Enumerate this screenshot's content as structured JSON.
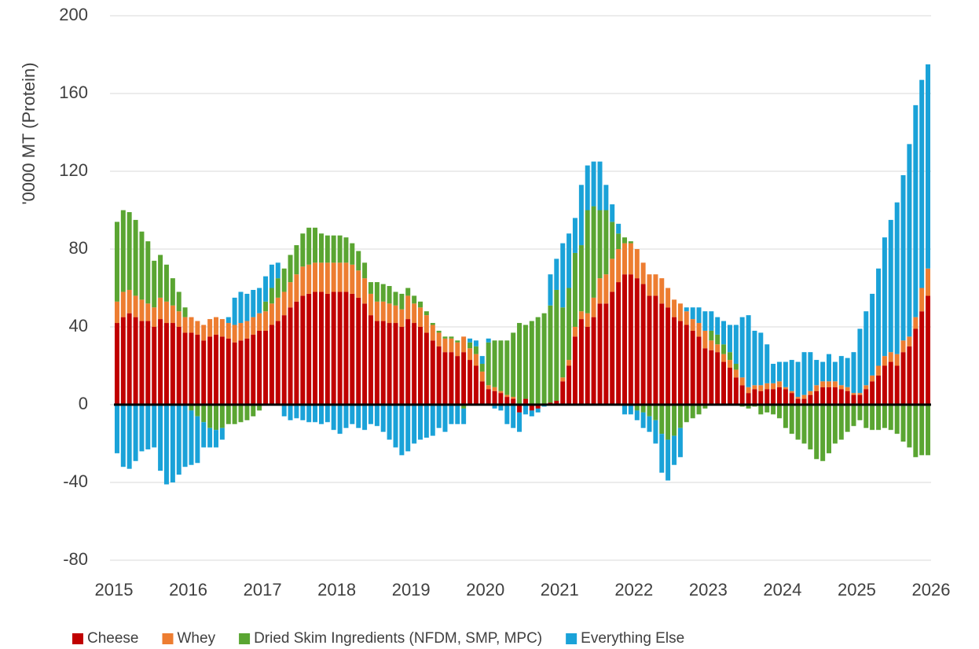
{
  "chart_data": {
    "type": "bar",
    "stacked": true,
    "y_label": "'0000 MT (Protein)",
    "xlim": [
      2015,
      2026
    ],
    "xticks": [
      2015,
      2016,
      2017,
      2018,
      2019,
      2020,
      2021,
      2022,
      2023,
      2024,
      2025,
      2026
    ],
    "ylim": [
      -80,
      200
    ],
    "yticks": [
      -80,
      -40,
      0,
      40,
      80,
      120,
      160,
      200
    ],
    "grid": true,
    "legend": "bottom",
    "x": [
      2015.042,
      2015.125,
      2015.208,
      2015.292,
      2015.375,
      2015.458,
      2015.542,
      2015.625,
      2015.708,
      2015.792,
      2015.875,
      2015.958,
      2016.042,
      2016.125,
      2016.208,
      2016.292,
      2016.375,
      2016.458,
      2016.542,
      2016.625,
      2016.708,
      2016.792,
      2016.875,
      2016.958,
      2017.042,
      2017.125,
      2017.208,
      2017.292,
      2017.375,
      2017.458,
      2017.542,
      2017.625,
      2017.708,
      2017.792,
      2017.875,
      2017.958,
      2018.042,
      2018.125,
      2018.208,
      2018.292,
      2018.375,
      2018.458,
      2018.542,
      2018.625,
      2018.708,
      2018.792,
      2018.875,
      2018.958,
      2019.042,
      2019.125,
      2019.208,
      2019.292,
      2019.375,
      2019.458,
      2019.542,
      2019.625,
      2019.708,
      2019.792,
      2019.875,
      2019.958,
      2020.042,
      2020.125,
      2020.208,
      2020.292,
      2020.375,
      2020.458,
      2020.542,
      2020.625,
      2020.708,
      2020.792,
      2020.875,
      2020.958,
      2021.042,
      2021.125,
      2021.208,
      2021.292,
      2021.375,
      2021.458,
      2021.542,
      2021.625,
      2021.708,
      2021.792,
      2021.875,
      2021.958,
      2022.042,
      2022.125,
      2022.208,
      2022.292,
      2022.375,
      2022.458,
      2022.542,
      2022.625,
      2022.708,
      2022.792,
      2022.875,
      2022.958,
      2023.042,
      2023.125,
      2023.208,
      2023.292,
      2023.375,
      2023.458,
      2023.542,
      2023.625,
      2023.708,
      2023.792,
      2023.875,
      2023.958,
      2024.042,
      2024.125,
      2024.208,
      2024.292,
      2024.375,
      2024.458,
      2024.542,
      2024.625,
      2024.708,
      2024.792,
      2024.875,
      2024.958,
      2025.042,
      2025.125,
      2025.208,
      2025.292,
      2025.375,
      2025.458,
      2025.542,
      2025.625,
      2025.708,
      2025.792,
      2025.875,
      2025.958
    ],
    "series": [
      {
        "name": "Cheese",
        "color": "#c00000",
        "values": [
          42,
          45,
          47,
          45,
          43,
          43,
          40,
          44,
          42,
          42,
          40,
          37,
          37,
          36,
          33,
          35,
          36,
          35,
          34,
          32,
          33,
          34,
          36,
          38,
          38,
          41,
          43,
          46,
          50,
          53,
          56,
          57,
          58,
          58,
          57,
          58,
          58,
          58,
          57,
          55,
          52,
          46,
          43,
          43,
          42,
          42,
          40,
          44,
          42,
          40,
          37,
          33,
          30,
          27,
          27,
          25,
          27,
          23,
          20,
          12,
          8,
          7,
          6,
          4,
          3,
          -4,
          3,
          -3,
          -2,
          0,
          1,
          2,
          12,
          20,
          35,
          44,
          40,
          45,
          52,
          52,
          58,
          63,
          67,
          67,
          65,
          62,
          56,
          56,
          52,
          50,
          45,
          43,
          41,
          38,
          35,
          29,
          28,
          27,
          22,
          19,
          14,
          10,
          6,
          8,
          7,
          8,
          8,
          9,
          8,
          6,
          3,
          3,
          5,
          7,
          9,
          9,
          9,
          8,
          7,
          5,
          5,
          8,
          12,
          15,
          20,
          22,
          20,
          27,
          30,
          39,
          48,
          56
        ]
      },
      {
        "name": "Whey",
        "color": "#ed7d31",
        "values": [
          11,
          13,
          12,
          11,
          11,
          9,
          10,
          11,
          11,
          9,
          8,
          8,
          8,
          7,
          8,
          9,
          9,
          9,
          8,
          9,
          9,
          9,
          9,
          9,
          10,
          11,
          12,
          12,
          13,
          14,
          15,
          15,
          15,
          15,
          16,
          15,
          15,
          15,
          15,
          14,
          13,
          11,
          10,
          10,
          10,
          9,
          9,
          12,
          10,
          10,
          9,
          8,
          7,
          7,
          7,
          7,
          8,
          6,
          6,
          5,
          2,
          2,
          1,
          1,
          1,
          0,
          0,
          0,
          0,
          0,
          0,
          0,
          2,
          3,
          5,
          4,
          7,
          10,
          13,
          15,
          17,
          17,
          16,
          16,
          15,
          11,
          11,
          11,
          13,
          10,
          9,
          9,
          7,
          6,
          7,
          9,
          5,
          4,
          4,
          4,
          4,
          4,
          3,
          2,
          3,
          3,
          3,
          3,
          1,
          1,
          1,
          2,
          2,
          3,
          3,
          3,
          3,
          2,
          2,
          1,
          1,
          2,
          3,
          5,
          5,
          5,
          6,
          6,
          5,
          6,
          12,
          14
        ]
      },
      {
        "name": "Dried Skim Ingredients (NFDM, SMP, MPC)",
        "color": "#5aa532",
        "values": [
          41,
          42,
          40,
          39,
          35,
          32,
          24,
          22,
          19,
          14,
          10,
          5,
          -3,
          -6,
          -9,
          -12,
          -13,
          -12,
          -10,
          -10,
          -9,
          -8,
          -6,
          -3,
          5,
          8,
          10,
          12,
          14,
          15,
          17,
          19,
          18,
          15,
          14,
          14,
          14,
          13,
          11,
          10,
          8,
          6,
          10,
          9,
          9,
          7,
          8,
          4,
          4,
          3,
          2,
          1,
          1,
          1,
          1,
          1,
          -2,
          3,
          4,
          4,
          22,
          24,
          26,
          28,
          33,
          42,
          38,
          43,
          45,
          47,
          50,
          57,
          36,
          37,
          38,
          34,
          53,
          47,
          35,
          33,
          19,
          8,
          3,
          1,
          -3,
          -4,
          -6,
          -8,
          -15,
          -18,
          -16,
          -12,
          -9,
          -7,
          -5,
          -2,
          5,
          5,
          5,
          4,
          3,
          -1,
          -2,
          -1,
          -5,
          -4,
          -5,
          -7,
          -12,
          -15,
          -18,
          -20,
          -23,
          -28,
          -29,
          -25,
          -20,
          -18,
          -14,
          -11,
          -8,
          -12,
          -13,
          -13,
          -12,
          -13,
          -15,
          -19,
          -22,
          -27,
          -26,
          -26
        ]
      },
      {
        "name": "Everything Else",
        "color": "#1aa2d8",
        "values": [
          -25,
          -32,
          -33,
          -29,
          -24,
          -23,
          -22,
          -34,
          -41,
          -40,
          -36,
          -32,
          -28,
          -24,
          -13,
          -10,
          -9,
          -6,
          3,
          14,
          16,
          14,
          14,
          13,
          13,
          12,
          8,
          -6,
          -8,
          -7,
          -8,
          -9,
          -9,
          -10,
          -9,
          -13,
          -15,
          -12,
          -10,
          -12,
          -13,
          -10,
          -11,
          -14,
          -18,
          -22,
          -26,
          -24,
          -20,
          -18,
          -17,
          -16,
          -12,
          -14,
          -10,
          -10,
          -8,
          2,
          3,
          4,
          2,
          -2,
          -3,
          -10,
          -12,
          -10,
          -5,
          -3,
          -2,
          -1,
          16,
          16,
          33,
          28,
          18,
          31,
          23,
          23,
          25,
          13,
          9,
          5,
          -5,
          -5,
          -5,
          -8,
          -8,
          -12,
          -20,
          -21,
          -15,
          -15,
          2,
          6,
          8,
          10,
          10,
          9,
          12,
          14,
          20,
          31,
          37,
          28,
          27,
          20,
          10,
          10,
          13,
          16,
          18,
          22,
          20,
          13,
          10,
          14,
          10,
          15,
          15,
          21,
          33,
          38,
          42,
          50,
          61,
          68,
          78,
          85,
          99,
          109,
          107,
          105
        ]
      }
    ]
  }
}
